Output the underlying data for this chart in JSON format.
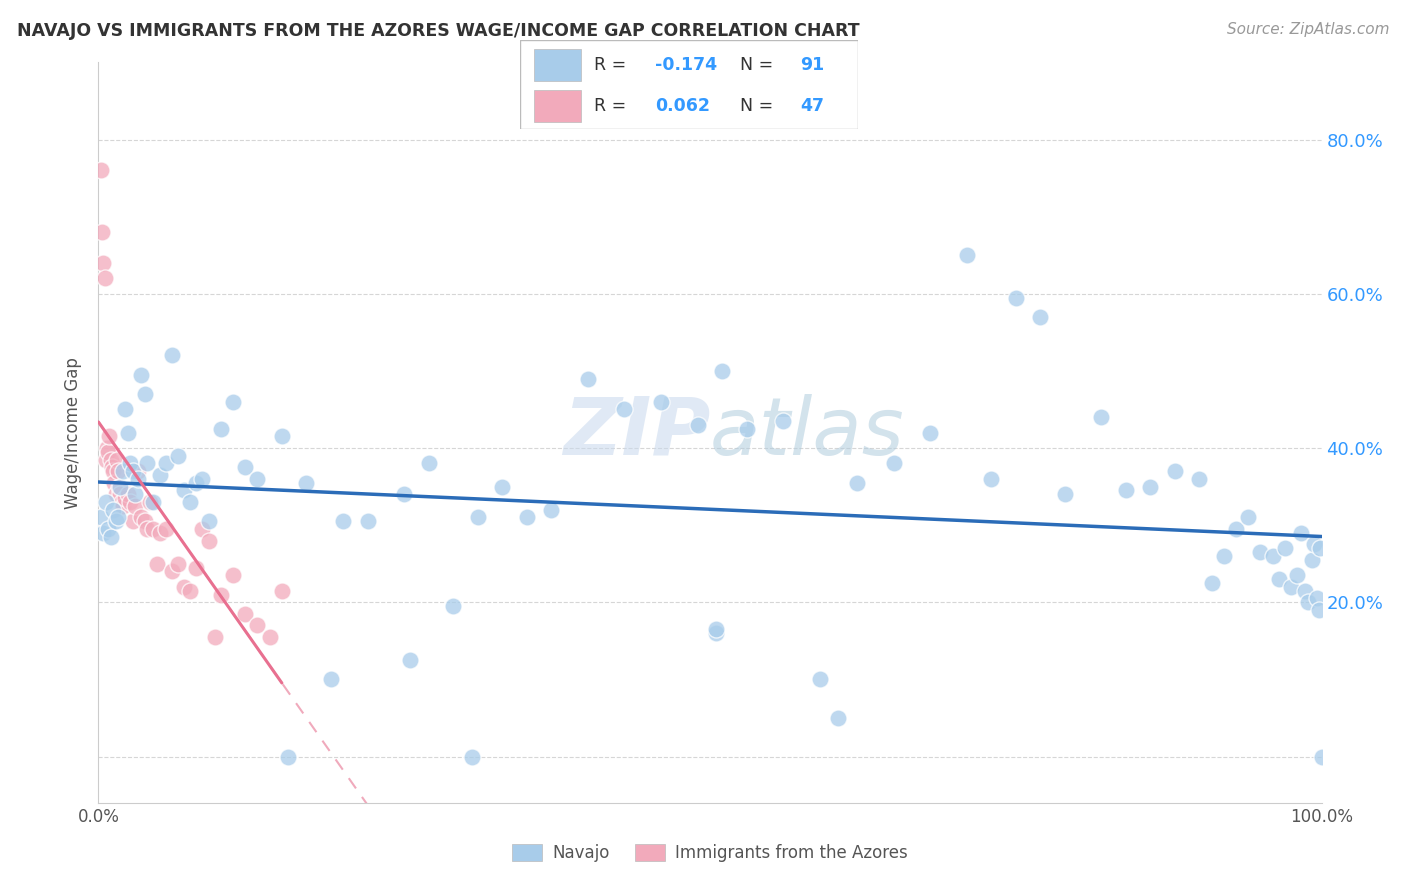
{
  "title": "NAVAJO VS IMMIGRANTS FROM THE AZORES WAGE/INCOME GAP CORRELATION CHART",
  "source": "Source: ZipAtlas.com",
  "ylabel": "Wage/Income Gap",
  "watermark": "ZIPatlas",
  "navajo_color": "#A8CCEA",
  "azores_color": "#F2AABB",
  "navajo_line_color": "#2B6CB8",
  "azores_line_color": "#E87090",
  "azores_dash_color": "#F0AABC",
  "grid_color": "#CCCCCC",
  "background_color": "#FFFFFF",
  "navajo_x": [
    0.002,
    0.004,
    0.006,
    0.008,
    0.01,
    0.012,
    0.014,
    0.016,
    0.018,
    0.02,
    0.022,
    0.024,
    0.026,
    0.028,
    0.03,
    0.032,
    0.035,
    0.038,
    0.04,
    0.045,
    0.05,
    0.055,
    0.06,
    0.065,
    0.07,
    0.075,
    0.08,
    0.085,
    0.09,
    0.1,
    0.11,
    0.12,
    0.13,
    0.15,
    0.17,
    0.19,
    0.2,
    0.22,
    0.25,
    0.27,
    0.29,
    0.31,
    0.33,
    0.35,
    0.37,
    0.4,
    0.43,
    0.46,
    0.49,
    0.51,
    0.53,
    0.56,
    0.59,
    0.62,
    0.65,
    0.68,
    0.71,
    0.73,
    0.75,
    0.77,
    0.79,
    0.82,
    0.84,
    0.86,
    0.88,
    0.9,
    0.91,
    0.92,
    0.93,
    0.94,
    0.95,
    0.96,
    0.965,
    0.97,
    0.975,
    0.98,
    0.983,
    0.986,
    0.989,
    0.992,
    0.994,
    0.996,
    0.998,
    0.999,
    1.0,
    0.505,
    0.605,
    0.505,
    0.305,
    0.155,
    0.255
  ],
  "navajo_y": [
    0.31,
    0.29,
    0.33,
    0.295,
    0.285,
    0.32,
    0.305,
    0.31,
    0.35,
    0.37,
    0.45,
    0.42,
    0.38,
    0.37,
    0.34,
    0.36,
    0.495,
    0.47,
    0.38,
    0.33,
    0.365,
    0.38,
    0.52,
    0.39,
    0.345,
    0.33,
    0.355,
    0.36,
    0.305,
    0.425,
    0.46,
    0.375,
    0.36,
    0.415,
    0.355,
    0.1,
    0.305,
    0.305,
    0.34,
    0.38,
    0.195,
    0.31,
    0.35,
    0.31,
    0.32,
    0.49,
    0.45,
    0.46,
    0.43,
    0.5,
    0.425,
    0.435,
    0.1,
    0.355,
    0.38,
    0.42,
    0.65,
    0.36,
    0.595,
    0.57,
    0.34,
    0.44,
    0.345,
    0.35,
    0.37,
    0.36,
    0.225,
    0.26,
    0.295,
    0.31,
    0.265,
    0.26,
    0.23,
    0.27,
    0.22,
    0.235,
    0.29,
    0.215,
    0.2,
    0.255,
    0.275,
    0.205,
    0.19,
    0.27,
    0.0,
    0.16,
    0.05,
    0.165,
    0.0,
    0.0,
    0.125
  ],
  "azores_x": [
    0.002,
    0.003,
    0.004,
    0.005,
    0.006,
    0.007,
    0.008,
    0.009,
    0.01,
    0.011,
    0.012,
    0.013,
    0.014,
    0.015,
    0.016,
    0.017,
    0.018,
    0.019,
    0.02,
    0.022,
    0.024,
    0.026,
    0.028,
    0.03,
    0.032,
    0.035,
    0.038,
    0.04,
    0.042,
    0.045,
    0.048,
    0.05,
    0.055,
    0.06,
    0.065,
    0.07,
    0.075,
    0.08,
    0.085,
    0.09,
    0.095,
    0.1,
    0.11,
    0.12,
    0.13,
    0.14,
    0.15
  ],
  "azores_y": [
    0.76,
    0.68,
    0.64,
    0.62,
    0.385,
    0.4,
    0.395,
    0.415,
    0.385,
    0.375,
    0.37,
    0.355,
    0.34,
    0.385,
    0.37,
    0.35,
    0.34,
    0.33,
    0.325,
    0.335,
    0.34,
    0.33,
    0.305,
    0.325,
    0.37,
    0.31,
    0.305,
    0.295,
    0.33,
    0.295,
    0.25,
    0.29,
    0.295,
    0.24,
    0.25,
    0.22,
    0.215,
    0.245,
    0.295,
    0.28,
    0.155,
    0.21,
    0.235,
    0.185,
    0.17,
    0.155,
    0.215
  ],
  "xlim": [
    0.0,
    1.0
  ],
  "ylim": [
    -0.06,
    0.9
  ],
  "yticks": [
    0.0,
    0.2,
    0.4,
    0.6,
    0.8
  ],
  "ytick_labels_right": [
    "",
    "20.0%",
    "40.0%",
    "60.0%",
    "80.0%"
  ],
  "xtick_positions": [
    0.0,
    1.0
  ],
  "xtick_labels": [
    "0.0%",
    "100.0%"
  ]
}
